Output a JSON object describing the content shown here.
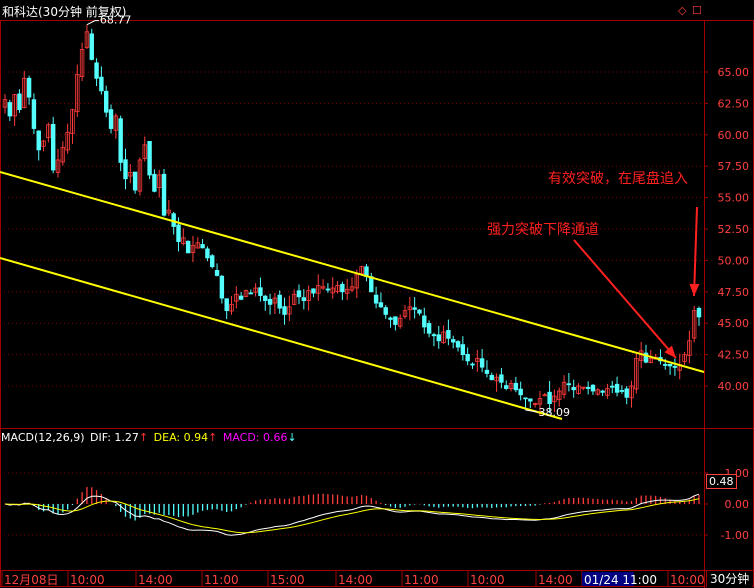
{
  "header": {
    "title": "和科达(30分钟 前复权)",
    "diamond_icon": "diamond-icon",
    "square_icon": "square-icon"
  },
  "colors": {
    "up": "#ff3c3c",
    "down": "#54ffff",
    "channel": "#ffff00",
    "annotation": "#ff2020",
    "frame": "#a00000",
    "axis_text": "#ff4040",
    "dif": "#ffffff",
    "dea": "#ffff00",
    "macd_label": "#ff00ff"
  },
  "macd_header": {
    "name": "MACD(12,26,9)",
    "dif_label": "DIF: 1.27",
    "dea_label": "DEA: 0.94",
    "macd_label": "MACD: 0.66",
    "dif_arrow": "↑",
    "dea_arrow": "↑",
    "macd_arrow": "↓"
  },
  "annotations": {
    "breakout_text": "有效突破，在尾盘追入",
    "channel_break_text": "强力突破下降通道",
    "high_label": "68.77",
    "low_label": "38.09",
    "current_macd_tag": "0.48"
  },
  "footer": {
    "period_button": "30分钟"
  },
  "chart_data": [
    {
      "type": "candlestick",
      "title": "和科达(30分钟 前复权)",
      "ylim": [
        37.5,
        68.8
      ],
      "yticks": [
        "65.00",
        "62.50",
        "60.00",
        "57.50",
        "55.00",
        "52.50",
        "50.00",
        "47.50",
        "45.00",
        "42.50",
        "40.00"
      ],
      "ytick_values": [
        65,
        62.5,
        60,
        57.5,
        55,
        52.5,
        50,
        47.5,
        45,
        42.5,
        40
      ],
      "xtick_labels": [
        "12月08日",
        "10:00",
        "14:00",
        "11:00",
        "15:00",
        "14:00",
        "11:00",
        "10:00",
        "14:00",
        "01/24 11:00",
        "10:00"
      ],
      "high": 68.77,
      "low": 38.09,
      "closes": [
        62.8,
        61.5,
        63.2,
        62.0,
        64.5,
        63.0,
        60.5,
        58.8,
        59.5,
        60.8,
        57.2,
        58.0,
        59.0,
        60.2,
        62.0,
        64.8,
        66.8,
        68.2,
        66.0,
        64.5,
        63.5,
        61.8,
        60.5,
        61.5,
        57.8,
        56.5,
        57.0,
        55.6,
        58.0,
        59.2,
        56.8,
        55.5,
        56.8,
        53.6,
        54.0,
        52.7,
        51.5,
        51.8,
        50.6,
        51.2,
        51.4,
        51.0,
        50.2,
        49.5,
        48.8,
        47.0,
        46.0,
        46.5,
        47.3,
        46.9,
        47.6,
        47.4,
        47.8,
        47.2,
        46.8,
        46.5,
        47.0,
        46.2,
        45.7,
        46.3,
        47.3,
        47.1,
        46.8,
        47.6,
        47.4,
        48.0,
        47.9,
        47.7,
        47.8,
        48.0,
        47.5,
        47.7,
        47.9,
        48.9,
        49.5,
        48.7,
        47.5,
        46.6,
        46.3,
        45.7,
        45.3,
        44.9,
        45.4,
        46.0,
        46.3,
        46.1,
        45.8,
        44.7,
        44.2,
        44.0,
        43.6,
        44.3,
        43.8,
        43.5,
        43.1,
        42.5,
        42.0,
        41.7,
        42.2,
        41.5,
        41.0,
        40.5,
        40.7,
        40.3,
        39.8,
        40.2,
        39.7,
        39.3,
        39.0,
        38.8,
        38.6,
        39.0,
        39.3,
        38.6,
        39.2,
        39.6,
        40.3,
        40.1,
        39.7,
        40.0,
        39.9,
        39.8,
        39.6,
        39.7,
        39.5,
        39.8,
        39.9,
        39.5,
        39.6,
        39.1,
        40.0,
        42.2,
        42.8,
        41.9,
        42.2,
        42.3,
        42.0,
        41.7,
        41.6,
        41.5,
        41.7,
        42.5,
        43.6,
        46.0,
        45.5
      ],
      "channel_upper": {
        "from": [
          "start",
          57.0
        ],
        "to": [
          "end",
          41.1
        ]
      },
      "channel_lower": {
        "from": [
          "start",
          50.1
        ],
        "to": [
          "12:00 near 01/24",
          38.2
        ]
      }
    },
    {
      "type": "macd",
      "params": [
        12,
        26,
        9
      ],
      "DIF": 1.27,
      "DEA": 0.94,
      "MACD": 0.66,
      "ylim": [
        -1.3,
        1.45
      ],
      "yticks": [
        "1.00",
        "0.00",
        "-1.00"
      ],
      "ytick_values": [
        1.0,
        0.0,
        -1.0
      ]
    }
  ]
}
